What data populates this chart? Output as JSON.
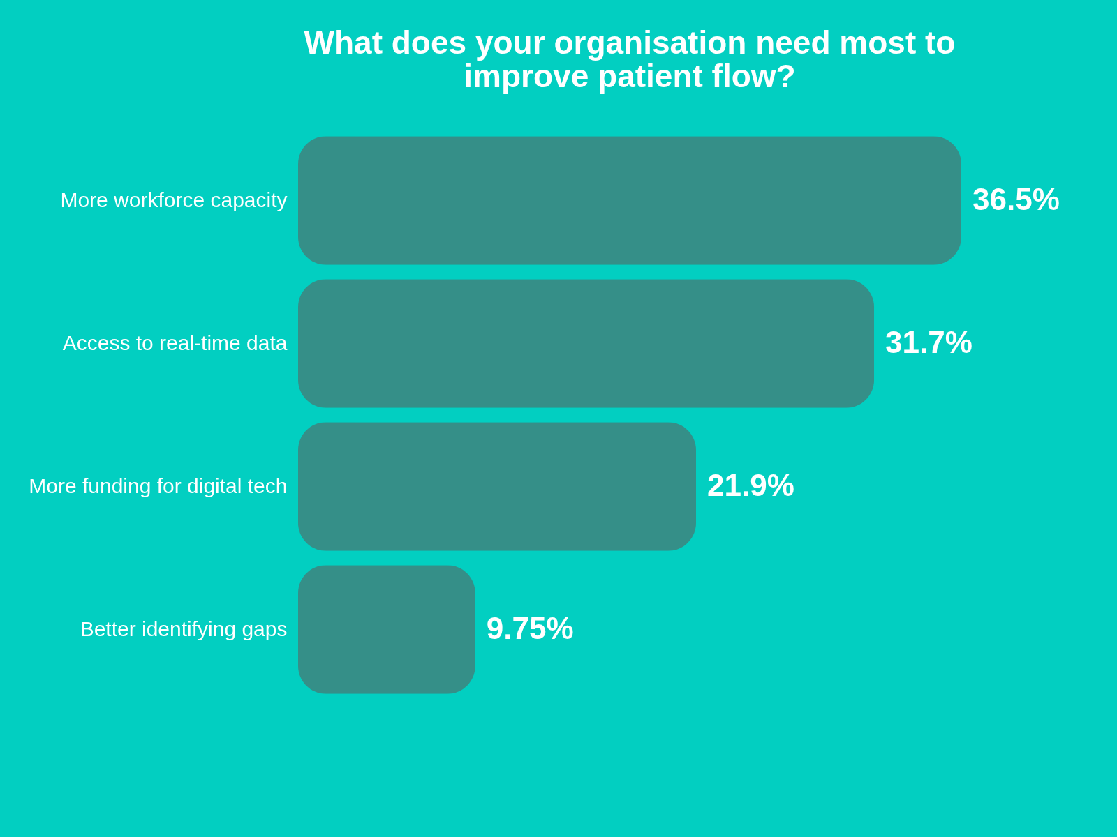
{
  "chart_data": {
    "type": "bar",
    "orientation": "horizontal",
    "title": "What does your organisation need most to improve patient flow?",
    "categories": [
      "More workforce capacity",
      "Access to real-time data",
      "More funding for digital tech",
      "Better identifying gaps"
    ],
    "values": [
      36.5,
      31.7,
      21.9,
      9.75
    ],
    "value_labels": [
      "36.5%",
      "31.7%",
      "21.9%",
      "9.75%"
    ],
    "color": "#358f88"
  }
}
